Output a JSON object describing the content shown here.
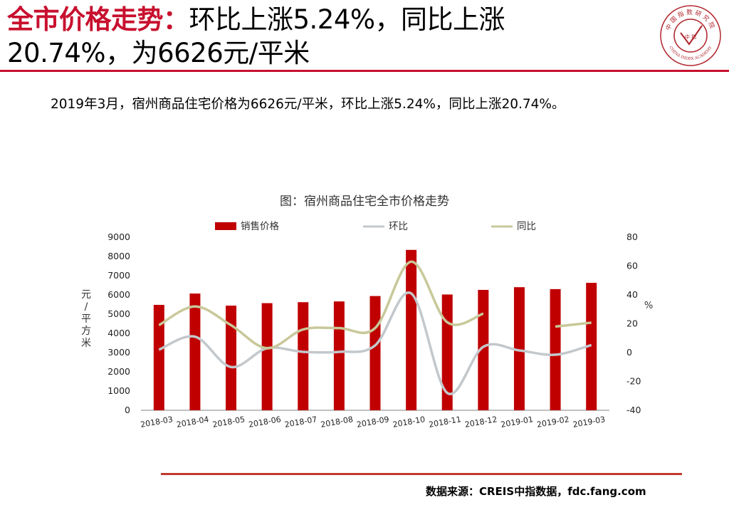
{
  "slide": {
    "title_highlight": "全市价格走势：",
    "title_line1_rest": "环比上涨5.24%，同比上涨",
    "title_line2": "20.74%，为6626元/平米",
    "summary": "2019年3月，宿州商品住宅价格为6626元/平米，环比上涨5.24%，同比上涨20.74%。",
    "source": "数据来源：CREIS中指数据，fdc.fang.com"
  },
  "logo": {
    "top_text": "中国指数研究院",
    "center_text": "中 指",
    "bottom_text": "CHINA INDEX ACADEMY"
  },
  "colors": {
    "accent": "#c8102e",
    "bar": "#c00000",
    "mom_line": "#c3c8cc",
    "yoy_line": "#c8c89a"
  },
  "chart_data": {
    "type": "bar",
    "title": "图：宿州商品住宅全市价格走势",
    "categories": [
      "2018-03",
      "2018-04",
      "2018-05",
      "2018-06",
      "2018-07",
      "2018-08",
      "2018-09",
      "2018-10",
      "2018-11",
      "2018-12",
      "2019-01",
      "2019-02",
      "2019-03"
    ],
    "series": [
      {
        "name": "销售价格",
        "type": "bar",
        "axis": "left",
        "values": [
          5480,
          6070,
          5440,
          5570,
          5620,
          5660,
          5940,
          8340,
          6020,
          6260,
          6400,
          6300,
          6626
        ]
      },
      {
        "name": "环比",
        "type": "line",
        "axis": "right",
        "values": [
          2,
          11,
          -10,
          3,
          0.5,
          0.5,
          5,
          41,
          -28,
          4,
          1.5,
          -1.5,
          5.24
        ]
      },
      {
        "name": "同比",
        "type": "line",
        "axis": "right",
        "values": [
          19,
          32,
          19,
          3,
          16,
          17,
          17,
          63,
          21,
          27,
          null,
          18,
          20.74
        ]
      }
    ],
    "ylabel_left": "元/平方米",
    "ylabel_right": "%",
    "ylim_left": [
      0,
      9000
    ],
    "yticks_left": [
      "0",
      "1000",
      "2000",
      "3000",
      "4000",
      "5000",
      "6000",
      "7000",
      "8000",
      "9000"
    ],
    "ylim_right": [
      -40,
      80
    ],
    "yticks_right": [
      "-40",
      "-20",
      "0",
      "20",
      "40",
      "60",
      "80"
    ],
    "legend": [
      "销售价格",
      "环比",
      "同比"
    ],
    "grid": false
  }
}
